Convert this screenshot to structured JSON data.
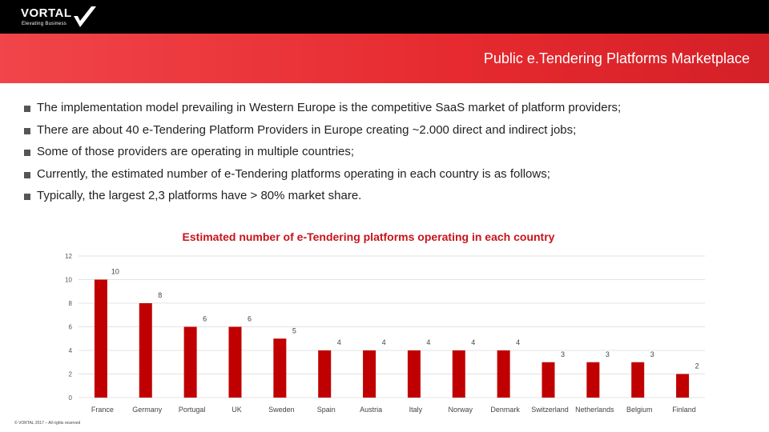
{
  "header": {
    "logo_text": "VORTAL",
    "logo_tagline": "Elevating Business",
    "title": "Public e.Tendering Platforms Marketplace"
  },
  "bullets": [
    "The implementation model prevailing in Western Europe is the competitive SaaS market of platform providers;",
    "There are about 40 e-Tendering Platform Providers in Europe creating ~2.000 direct and indirect jobs;",
    "Some of those providers are operating in multiple countries;",
    "Currently, the estimated number of e-Tendering platforms operating in each country is as follows;",
    "Typically, the largest 2,3 platforms have > 80% market share."
  ],
  "footer": "© VORTAL 2017 – All rights reserved",
  "colors": {
    "banner": "#e62a2f",
    "bar": "#c00000",
    "title": "#c8141c"
  },
  "chart_data": {
    "type": "bar",
    "title": "Estimated number of e-Tendering platforms operating in each country",
    "categories": [
      "France",
      "Germany",
      "Portugal",
      "UK",
      "Sweden",
      "Spain",
      "Austria",
      "Italy",
      "Norway",
      "Denmark",
      "Switzerland",
      "Netherlands",
      "Belgium",
      "Finland"
    ],
    "values": [
      10,
      8,
      6,
      6,
      5,
      4,
      4,
      4,
      4,
      4,
      3,
      3,
      3,
      2
    ],
    "ylim": [
      0,
      12
    ],
    "yticks": [
      0,
      2,
      4,
      6,
      8,
      10,
      12
    ],
    "grid": true,
    "xlabel": "",
    "ylabel": ""
  }
}
